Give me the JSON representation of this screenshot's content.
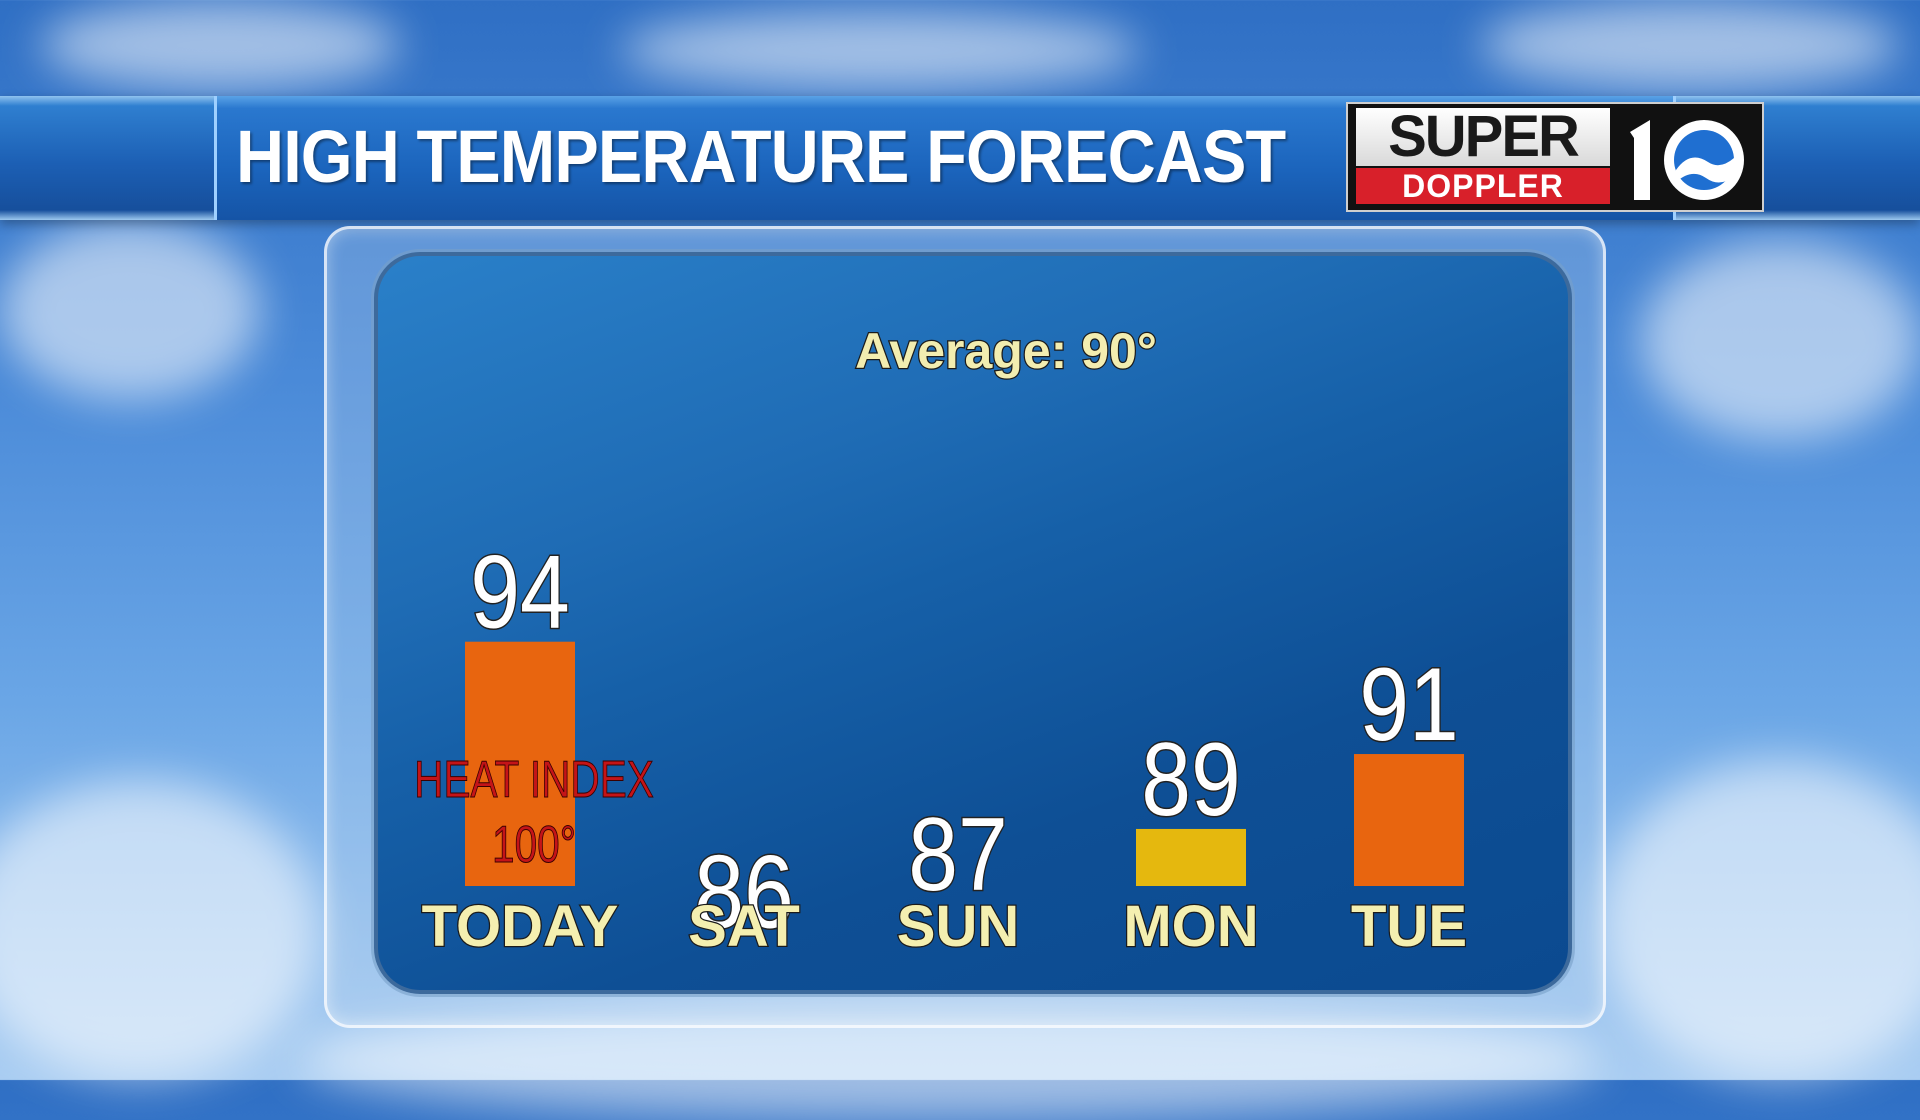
{
  "header": {
    "title": "HIGH TEMPERATURE FORECAST",
    "logo": {
      "top": "SUPER",
      "bottom": "DOPPLER",
      "number_icon": "ten-wave-icon"
    }
  },
  "chart_data": {
    "type": "bar",
    "title": "",
    "xlabel": "",
    "ylabel": "",
    "ylim": [
      80,
      100
    ],
    "categories": [
      "TODAY",
      "SAT",
      "SUN",
      "MON",
      "TUE"
    ],
    "values": [
      94,
      86,
      87,
      89,
      91
    ],
    "value_labels": [
      "94",
      "86",
      "87",
      "89",
      "91"
    ],
    "bar_colors": [
      "#e8650f",
      "#e5b80e",
      "#e5b80e",
      "#e5b80e",
      "#e8650f"
    ],
    "annotations": [
      {
        "text": "Average: 90°"
      },
      {
        "text_line1": "HEAT INDEX",
        "text_line2": "100°",
        "category": "TODAY"
      }
    ],
    "grid": false,
    "legend": "none"
  },
  "colors": {
    "panel": "#1660a8",
    "hot_bar": "#e8650f",
    "normal_bar": "#e5b80e",
    "label_text": "#f4efb0",
    "annotation_text": "#c41418"
  }
}
